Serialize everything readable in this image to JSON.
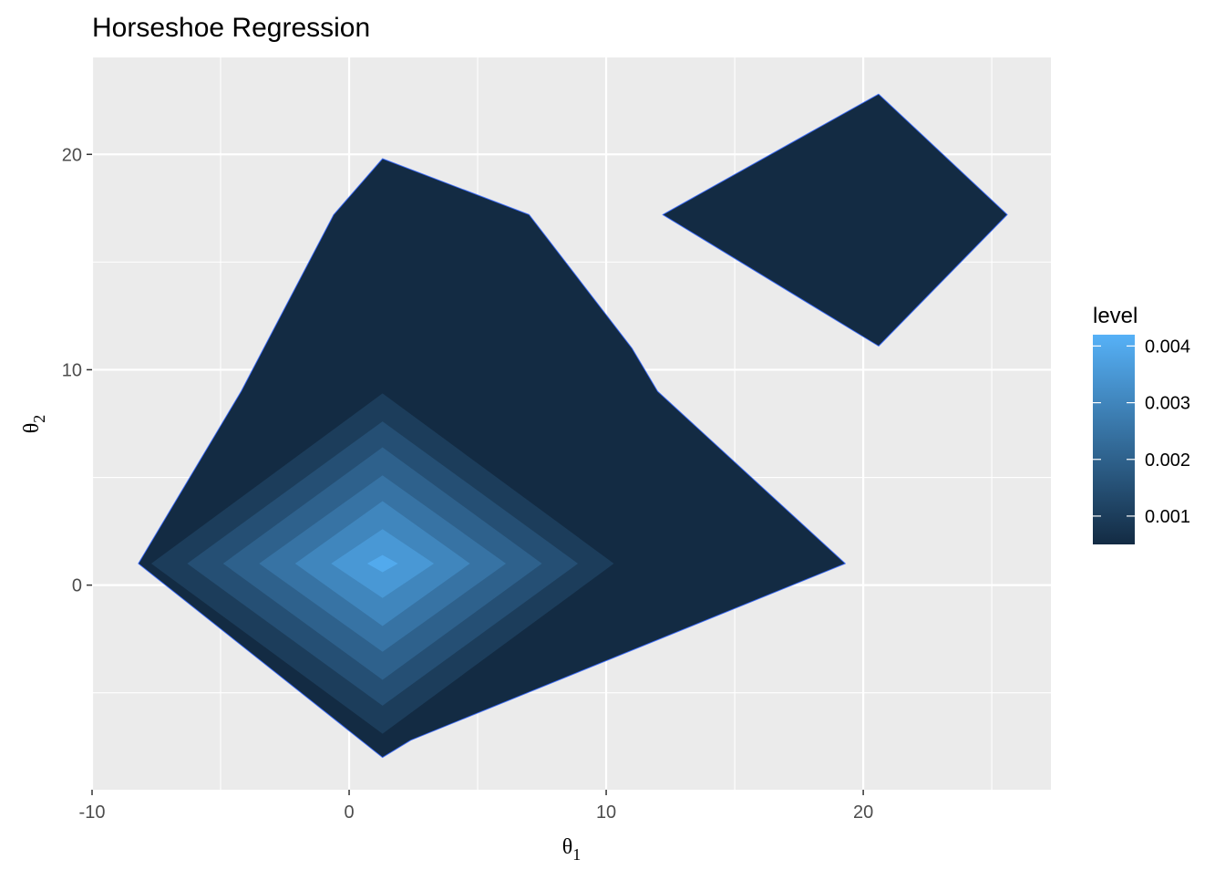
{
  "chart_data": {
    "type": "filled-contour",
    "title": "Horseshoe Regression",
    "xlabel": {
      "symbol": "θ",
      "subscript": "1"
    },
    "ylabel": {
      "symbol": "θ",
      "subscript": "2"
    },
    "xlim": [
      -10,
      27.3
    ],
    "ylim": [
      -9.5,
      24.5
    ],
    "x_ticks": [
      -10,
      0,
      10,
      20
    ],
    "x_tick_labels": [
      "-10",
      "0",
      "10",
      "20"
    ],
    "y_ticks": [
      0,
      10,
      20
    ],
    "y_tick_labels": [
      "0",
      "10",
      "20"
    ],
    "x_minor_ticks": [
      -5,
      5,
      15,
      25
    ],
    "y_minor_ticks": [
      -5,
      5,
      15
    ],
    "grid": true,
    "panel_background": "#ebebeb",
    "grid_color": "#ffffff",
    "legend": {
      "title": "level",
      "position": "right",
      "breaks": [
        0.001,
        0.002,
        0.003,
        0.004
      ],
      "break_labels": [
        "0.001",
        "0.002",
        "0.003",
        "0.004"
      ],
      "range": [
        0.0005,
        0.0042
      ],
      "low_color": "#132b43",
      "high_color": "#56b1f7"
    },
    "regions": [
      {
        "level": 0.0005,
        "points": [
          [
            -8.2,
            1
          ],
          [
            -4.2,
            9
          ],
          [
            -0.6,
            17.2
          ],
          [
            1.3,
            19.8
          ],
          [
            7,
            17.2
          ],
          [
            11,
            11
          ],
          [
            12,
            9
          ],
          [
            19.3,
            1
          ],
          [
            2.4,
            -7.2
          ],
          [
            1.3,
            -8.0
          ]
        ]
      },
      {
        "level": 0.0005,
        "points": [
          [
            12.2,
            17.2
          ],
          [
            20.6,
            22.8
          ],
          [
            25.6,
            17.2
          ],
          [
            20.6,
            11.1
          ]
        ]
      },
      {
        "level": 0.001,
        "center": [
          1.3,
          1
        ],
        "half_width": 9.0,
        "half_height": 7.9
      },
      {
        "level": 0.0015,
        "center": [
          1.3,
          1
        ],
        "half_width": 7.6,
        "half_height": 6.6
      },
      {
        "level": 0.002,
        "center": [
          1.3,
          1
        ],
        "half_width": 6.2,
        "half_height": 5.4
      },
      {
        "level": 0.0025,
        "center": [
          1.3,
          1
        ],
        "half_width": 4.8,
        "half_height": 4.1
      },
      {
        "level": 0.003,
        "center": [
          1.3,
          1
        ],
        "half_width": 3.4,
        "half_height": 2.9
      },
      {
        "level": 0.0035,
        "center": [
          1.3,
          1
        ],
        "half_width": 2.0,
        "half_height": 1.6
      },
      {
        "level": 0.004,
        "center": [
          1.3,
          1
        ],
        "half_width": 0.6,
        "half_height": 0.4
      }
    ]
  }
}
